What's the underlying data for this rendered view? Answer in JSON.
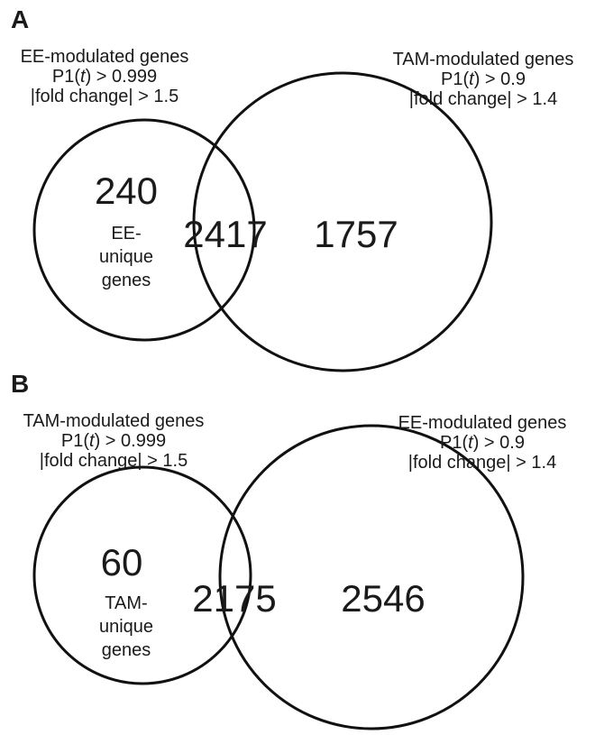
{
  "panelA": {
    "letter": "A",
    "left_set": {
      "title": "EE-modulated genes",
      "p_prefix": "P1(",
      "p_var": "t",
      "p_suffix": ") > 0.999",
      "fold": "|fold change| > 1.5"
    },
    "right_set": {
      "title": "TAM-modulated genes",
      "p_prefix": "P1(",
      "p_var": "t",
      "p_suffix": ") > 0.9",
      "fold": "|fold change| > 1.4"
    },
    "unique_count": "240",
    "unique_label": [
      "EE-",
      "unique",
      "genes"
    ],
    "overlap_count": "2417",
    "right_only_count": "1757"
  },
  "panelB": {
    "letter": "B",
    "left_set": {
      "title": "TAM-modulated genes",
      "p_prefix": "P1(",
      "p_var": "t",
      "p_suffix": ") > 0.999",
      "fold": "|fold change| > 1.5"
    },
    "right_set": {
      "title": "EE-modulated genes",
      "p_prefix": "P1(",
      "p_var": "t",
      "p_suffix": ") > 0.9",
      "fold": "|fold change| > 1.4"
    },
    "unique_count": "60",
    "unique_label": [
      "TAM-",
      "unique",
      "genes"
    ],
    "overlap_count": "2175",
    "right_only_count": "2546"
  }
}
